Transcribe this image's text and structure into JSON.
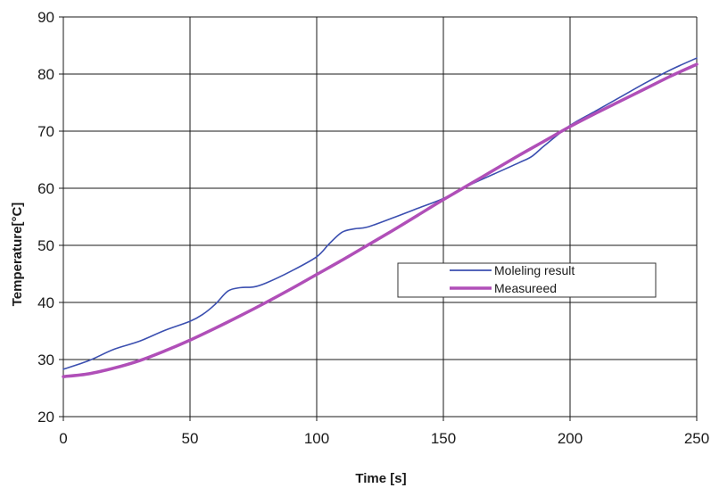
{
  "chart_data": {
    "type": "line",
    "title": "",
    "xlabel": "Time [s]",
    "ylabel": "Temperature[°C]",
    "xlim": [
      0,
      250
    ],
    "ylim": [
      20,
      90
    ],
    "xticks": [
      "0",
      "50",
      "100",
      "150",
      "200",
      "250"
    ],
    "yticks": [
      "20",
      "30",
      "40",
      "50",
      "60",
      "70",
      "80",
      "90"
    ],
    "grid": true,
    "legend_position": "center-right",
    "series": [
      {
        "name": "Moleling result",
        "color": "#3b4fb0",
        "x": [
          0,
          10,
          20,
          30,
          40,
          50,
          55,
          60,
          65,
          70,
          75,
          80,
          90,
          100,
          105,
          110,
          115,
          120,
          130,
          140,
          150,
          160,
          170,
          180,
          185,
          190,
          200,
          210,
          220,
          230,
          240,
          250
        ],
        "y": [
          28.3,
          29.8,
          31.8,
          33.2,
          35.1,
          36.7,
          37.9,
          39.7,
          42.0,
          42.6,
          42.7,
          43.4,
          45.5,
          48.0,
          50.3,
          52.3,
          52.9,
          53.2,
          54.8,
          56.5,
          58.2,
          60.5,
          62.5,
          64.5,
          65.6,
          67.5,
          71.0,
          73.5,
          76.0,
          78.5,
          80.8,
          82.8
        ]
      },
      {
        "name": "Measureed",
        "color": "#b04fb8",
        "x": [
          0,
          10,
          20,
          30,
          40,
          50,
          60,
          70,
          80,
          90,
          100,
          110,
          120,
          130,
          140,
          150,
          160,
          170,
          180,
          190,
          200,
          210,
          220,
          230,
          240,
          250
        ],
        "y": [
          27.0,
          27.5,
          28.5,
          29.8,
          31.5,
          33.4,
          35.5,
          37.7,
          40.0,
          42.4,
          44.9,
          47.4,
          50.0,
          52.6,
          55.3,
          58.0,
          60.6,
          63.2,
          65.8,
          68.3,
          70.8,
          73.1,
          75.3,
          77.5,
          79.7,
          81.7
        ]
      }
    ]
  }
}
